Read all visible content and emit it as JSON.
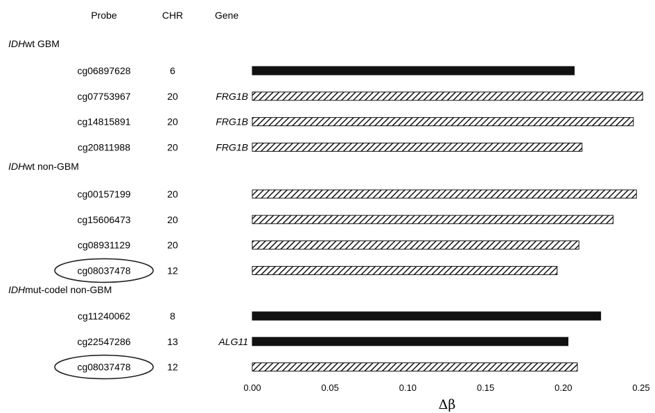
{
  "chart_data": {
    "type": "bar",
    "orientation": "horizontal",
    "headers": {
      "probe": "Probe",
      "chr": "CHR",
      "gene": "Gene"
    },
    "xlabel": "Δβ",
    "xlim": [
      0,
      0.25
    ],
    "xticks": [
      "0.00",
      "0.05",
      "0.10",
      "0.15",
      "0.20",
      "0.25"
    ],
    "colors": {
      "solid": "#111111",
      "hatched": "#111111"
    },
    "groups": [
      {
        "name_italic": "IDH",
        "name_rest": "wt GBM",
        "rows": [
          {
            "probe": "cg06897628",
            "chr": "6",
            "gene": "",
            "value": 0.207,
            "pattern": "solid",
            "circled": false
          },
          {
            "probe": "cg07753967",
            "chr": "20",
            "gene": "FRG1B",
            "value": 0.251,
            "pattern": "hatched",
            "circled": false
          },
          {
            "probe": "cg14815891",
            "chr": "20",
            "gene": "FRG1B",
            "value": 0.245,
            "pattern": "hatched",
            "circled": false
          },
          {
            "probe": "cg20811988",
            "chr": "20",
            "gene": "FRG1B",
            "value": 0.212,
            "pattern": "hatched",
            "circled": false
          }
        ]
      },
      {
        "name_italic": "IDH",
        "name_rest": "wt non-GBM",
        "rows": [
          {
            "probe": "cg00157199",
            "chr": "20",
            "gene": "",
            "value": 0.247,
            "pattern": "hatched",
            "circled": false
          },
          {
            "probe": "cg15606473",
            "chr": "20",
            "gene": "",
            "value": 0.232,
            "pattern": "hatched",
            "circled": false
          },
          {
            "probe": "cg08931129",
            "chr": "20",
            "gene": "",
            "value": 0.21,
            "pattern": "hatched",
            "circled": false
          },
          {
            "probe": "cg08037478",
            "chr": "12",
            "gene": "",
            "value": 0.196,
            "pattern": "hatched",
            "circled": true
          }
        ]
      },
      {
        "name_italic": "IDH",
        "name_rest": "mut-codel non-GBM",
        "rows": [
          {
            "probe": "cg11240062",
            "chr": "8",
            "gene": "",
            "value": 0.224,
            "pattern": "solid",
            "circled": false
          },
          {
            "probe": "cg22547286",
            "chr": "13",
            "gene": "ALG11",
            "value": 0.203,
            "pattern": "solid",
            "circled": false
          },
          {
            "probe": "cg08037478",
            "chr": "12",
            "gene": "",
            "value": 0.209,
            "pattern": "hatched",
            "circled": true
          }
        ]
      }
    ]
  }
}
